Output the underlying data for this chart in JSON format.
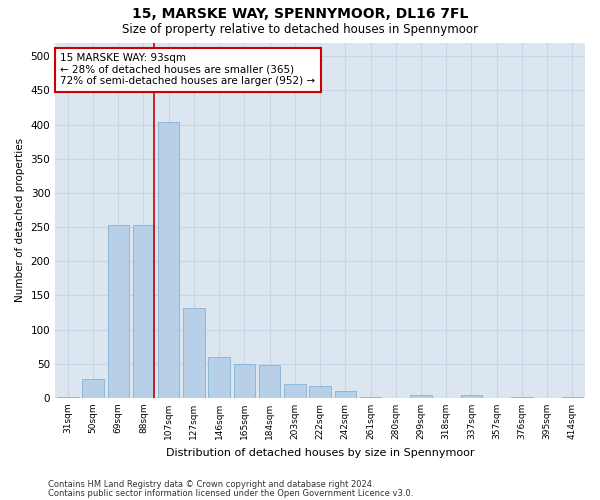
{
  "title": "15, MARSKE WAY, SPENNYMOOR, DL16 7FL",
  "subtitle": "Size of property relative to detached houses in Spennymoor",
  "xlabel": "Distribution of detached houses by size in Spennymoor",
  "ylabel": "Number of detached properties",
  "footnote1": "Contains HM Land Registry data © Crown copyright and database right 2024.",
  "footnote2": "Contains public sector information licensed under the Open Government Licence v3.0.",
  "categories": [
    "31sqm",
    "50sqm",
    "69sqm",
    "88sqm",
    "107sqm",
    "127sqm",
    "146sqm",
    "165sqm",
    "184sqm",
    "203sqm",
    "222sqm",
    "242sqm",
    "261sqm",
    "280sqm",
    "299sqm",
    "318sqm",
    "337sqm",
    "357sqm",
    "376sqm",
    "395sqm",
    "414sqm"
  ],
  "values": [
    2,
    27,
    253,
    253,
    403,
    132,
    60,
    50,
    48,
    20,
    18,
    10,
    2,
    0,
    5,
    0,
    5,
    0,
    1,
    0,
    1
  ],
  "bar_color": "#b8cfe8",
  "bar_edge_color": "#7aaad0",
  "grid_color": "#c8d4e8",
  "bg_color": "#dce6f0",
  "marker_line_color": "#cc0000",
  "annotation_title": "15 MARSKE WAY: 93sqm",
  "annotation_line1": "← 28% of detached houses are smaller (365)",
  "annotation_line2": "72% of semi-detached houses are larger (952) →",
  "annotation_box_color": "#cc0000",
  "ylim": [
    0,
    520
  ],
  "yticks": [
    0,
    50,
    100,
    150,
    200,
    250,
    300,
    350,
    400,
    450,
    500
  ]
}
